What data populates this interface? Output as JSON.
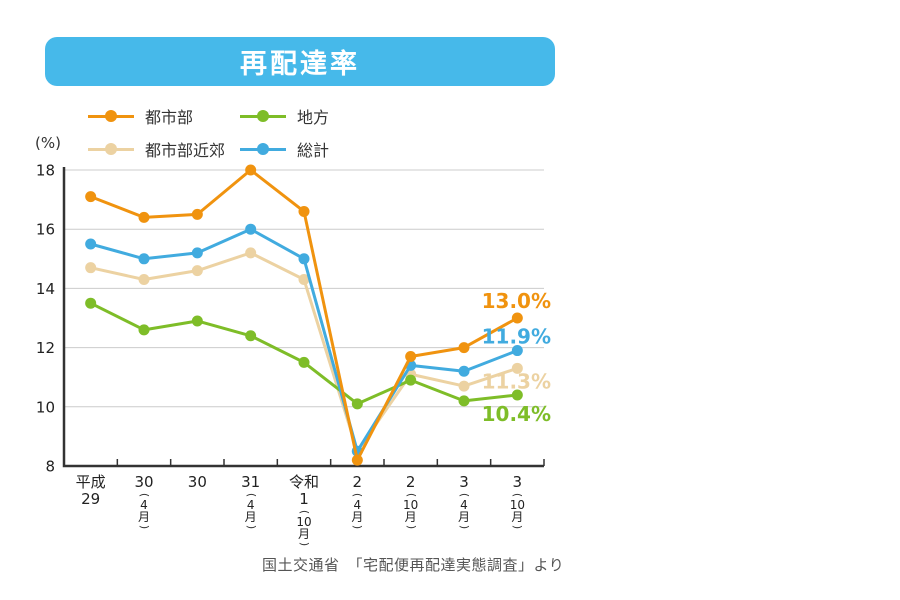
{
  "title": "再配達率",
  "y_axis_unit": "(%)",
  "footer": "国土交通省　「宅配便再配達実態調査」より",
  "colors": {
    "banner": "#46B9EA",
    "urban": "#F0930F",
    "suburban": "#ECD2A2",
    "rural": "#7EBD28",
    "total": "#41ABDF",
    "grid": "#cccccc",
    "axis": "#333333"
  },
  "chart_data": {
    "type": "line",
    "title": "再配達率",
    "ylabel": "(%)",
    "xlabel": "",
    "ylim": [
      8,
      18
    ],
    "yticks": [
      8,
      10,
      12,
      14,
      16,
      18
    ],
    "grid": true,
    "legend_position": "top-left",
    "categories": [
      "平成29",
      "30(4月)",
      "30",
      "31(4月)",
      "令和1(10月)",
      "2(4月)",
      "2(10月)",
      "3(4月)",
      "3(10月)"
    ],
    "x_tick_labels": [
      {
        "lines": [
          "平成",
          "29"
        ],
        "month": null
      },
      {
        "lines": [
          "30"
        ],
        "month": "4月"
      },
      {
        "lines": [
          "30"
        ],
        "month": null
      },
      {
        "lines": [
          "31"
        ],
        "month": "4月"
      },
      {
        "lines": [
          "令和",
          "1"
        ],
        "month": "10月"
      },
      {
        "lines": [
          "2"
        ],
        "month": "4月"
      },
      {
        "lines": [
          "2"
        ],
        "month": "10月"
      },
      {
        "lines": [
          "3"
        ],
        "month": "4月"
      },
      {
        "lines": [
          "3"
        ],
        "month": "10月"
      }
    ],
    "series": [
      {
        "key": "urban",
        "name": "都市部",
        "color": "#F0930F",
        "values": [
          17.1,
          16.4,
          16.5,
          18.0,
          16.6,
          8.2,
          11.7,
          12.0,
          13.0
        ],
        "end_label": "13.0%"
      },
      {
        "key": "suburban",
        "name": "都市部近郊",
        "color": "#ECD2A2",
        "values": [
          14.7,
          14.3,
          14.6,
          15.2,
          14.3,
          8.5,
          11.1,
          10.7,
          11.3
        ],
        "end_label": "11.3%"
      },
      {
        "key": "rural",
        "name": "地方",
        "color": "#7EBD28",
        "values": [
          13.5,
          12.6,
          12.9,
          12.4,
          11.5,
          10.1,
          10.9,
          10.2,
          10.4
        ],
        "end_label": "10.4%"
      },
      {
        "key": "total",
        "name": "総計",
        "color": "#41ABDF",
        "values": [
          15.5,
          15.0,
          15.2,
          16.0,
          15.0,
          8.5,
          11.4,
          11.2,
          11.9
        ],
        "end_label": "11.9%"
      }
    ]
  }
}
